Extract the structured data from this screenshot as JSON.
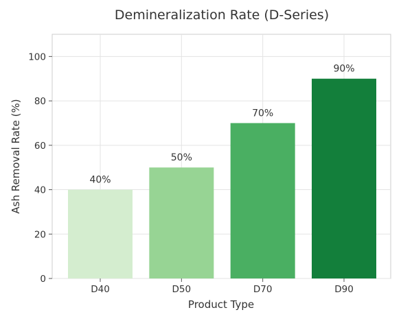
{
  "chart_data": {
    "type": "bar",
    "title": "Demineralization Rate (D-Series)",
    "xlabel": "Product Type",
    "ylabel": "Ash Removal Rate (%)",
    "categories": [
      "D40",
      "D50",
      "D70",
      "D90"
    ],
    "values": [
      40,
      50,
      70,
      90
    ],
    "data_labels": [
      "40%",
      "50%",
      "70%",
      "90%"
    ],
    "colors": [
      "#d4edcf",
      "#97d494",
      "#4aaf62",
      "#137f3b"
    ],
    "ylim": [
      0,
      110
    ],
    "yticks": [
      0,
      20,
      40,
      60,
      80,
      100
    ],
    "grid": true,
    "legend": "none"
  }
}
